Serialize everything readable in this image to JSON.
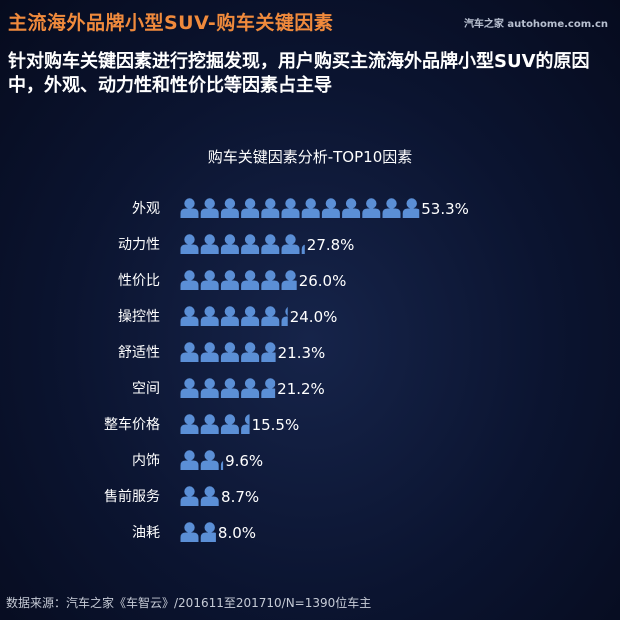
{
  "header": {
    "title": "主流海外品牌小型SUV-购车关键因素",
    "watermark": "汽车之家 autohome.com.cn"
  },
  "subtitle": "针对购车关键因素进行挖掘发现，用户购买主流海外品牌小型SUV的原因中，外观、动力性和性价比等因素占主导",
  "source": "数据来源：汽车之家《车智云》/201611至201710/N=1390位车主",
  "colors": {
    "icon": "#5b8fd6",
    "accent": "#f08a3c"
  },
  "chart_data": {
    "type": "bar",
    "title": "购车关键因素分析-TOP10因素",
    "categories": [
      "外观",
      "动力性",
      "性价比",
      "操控性",
      "舒适性",
      "空间",
      "整车价格",
      "内饰",
      "售前服务",
      "油耗"
    ],
    "values": [
      53.3,
      27.8,
      26.0,
      24.0,
      21.3,
      21.2,
      15.5,
      9.6,
      8.7,
      8.0
    ],
    "value_labels": [
      "53.3%",
      "27.8%",
      "26.0%",
      "24.0%",
      "21.3%",
      "21.2%",
      "15.5%",
      "9.6%",
      "8.7%",
      "8.0%"
    ],
    "unit": "%",
    "mark": "person-icon"
  }
}
